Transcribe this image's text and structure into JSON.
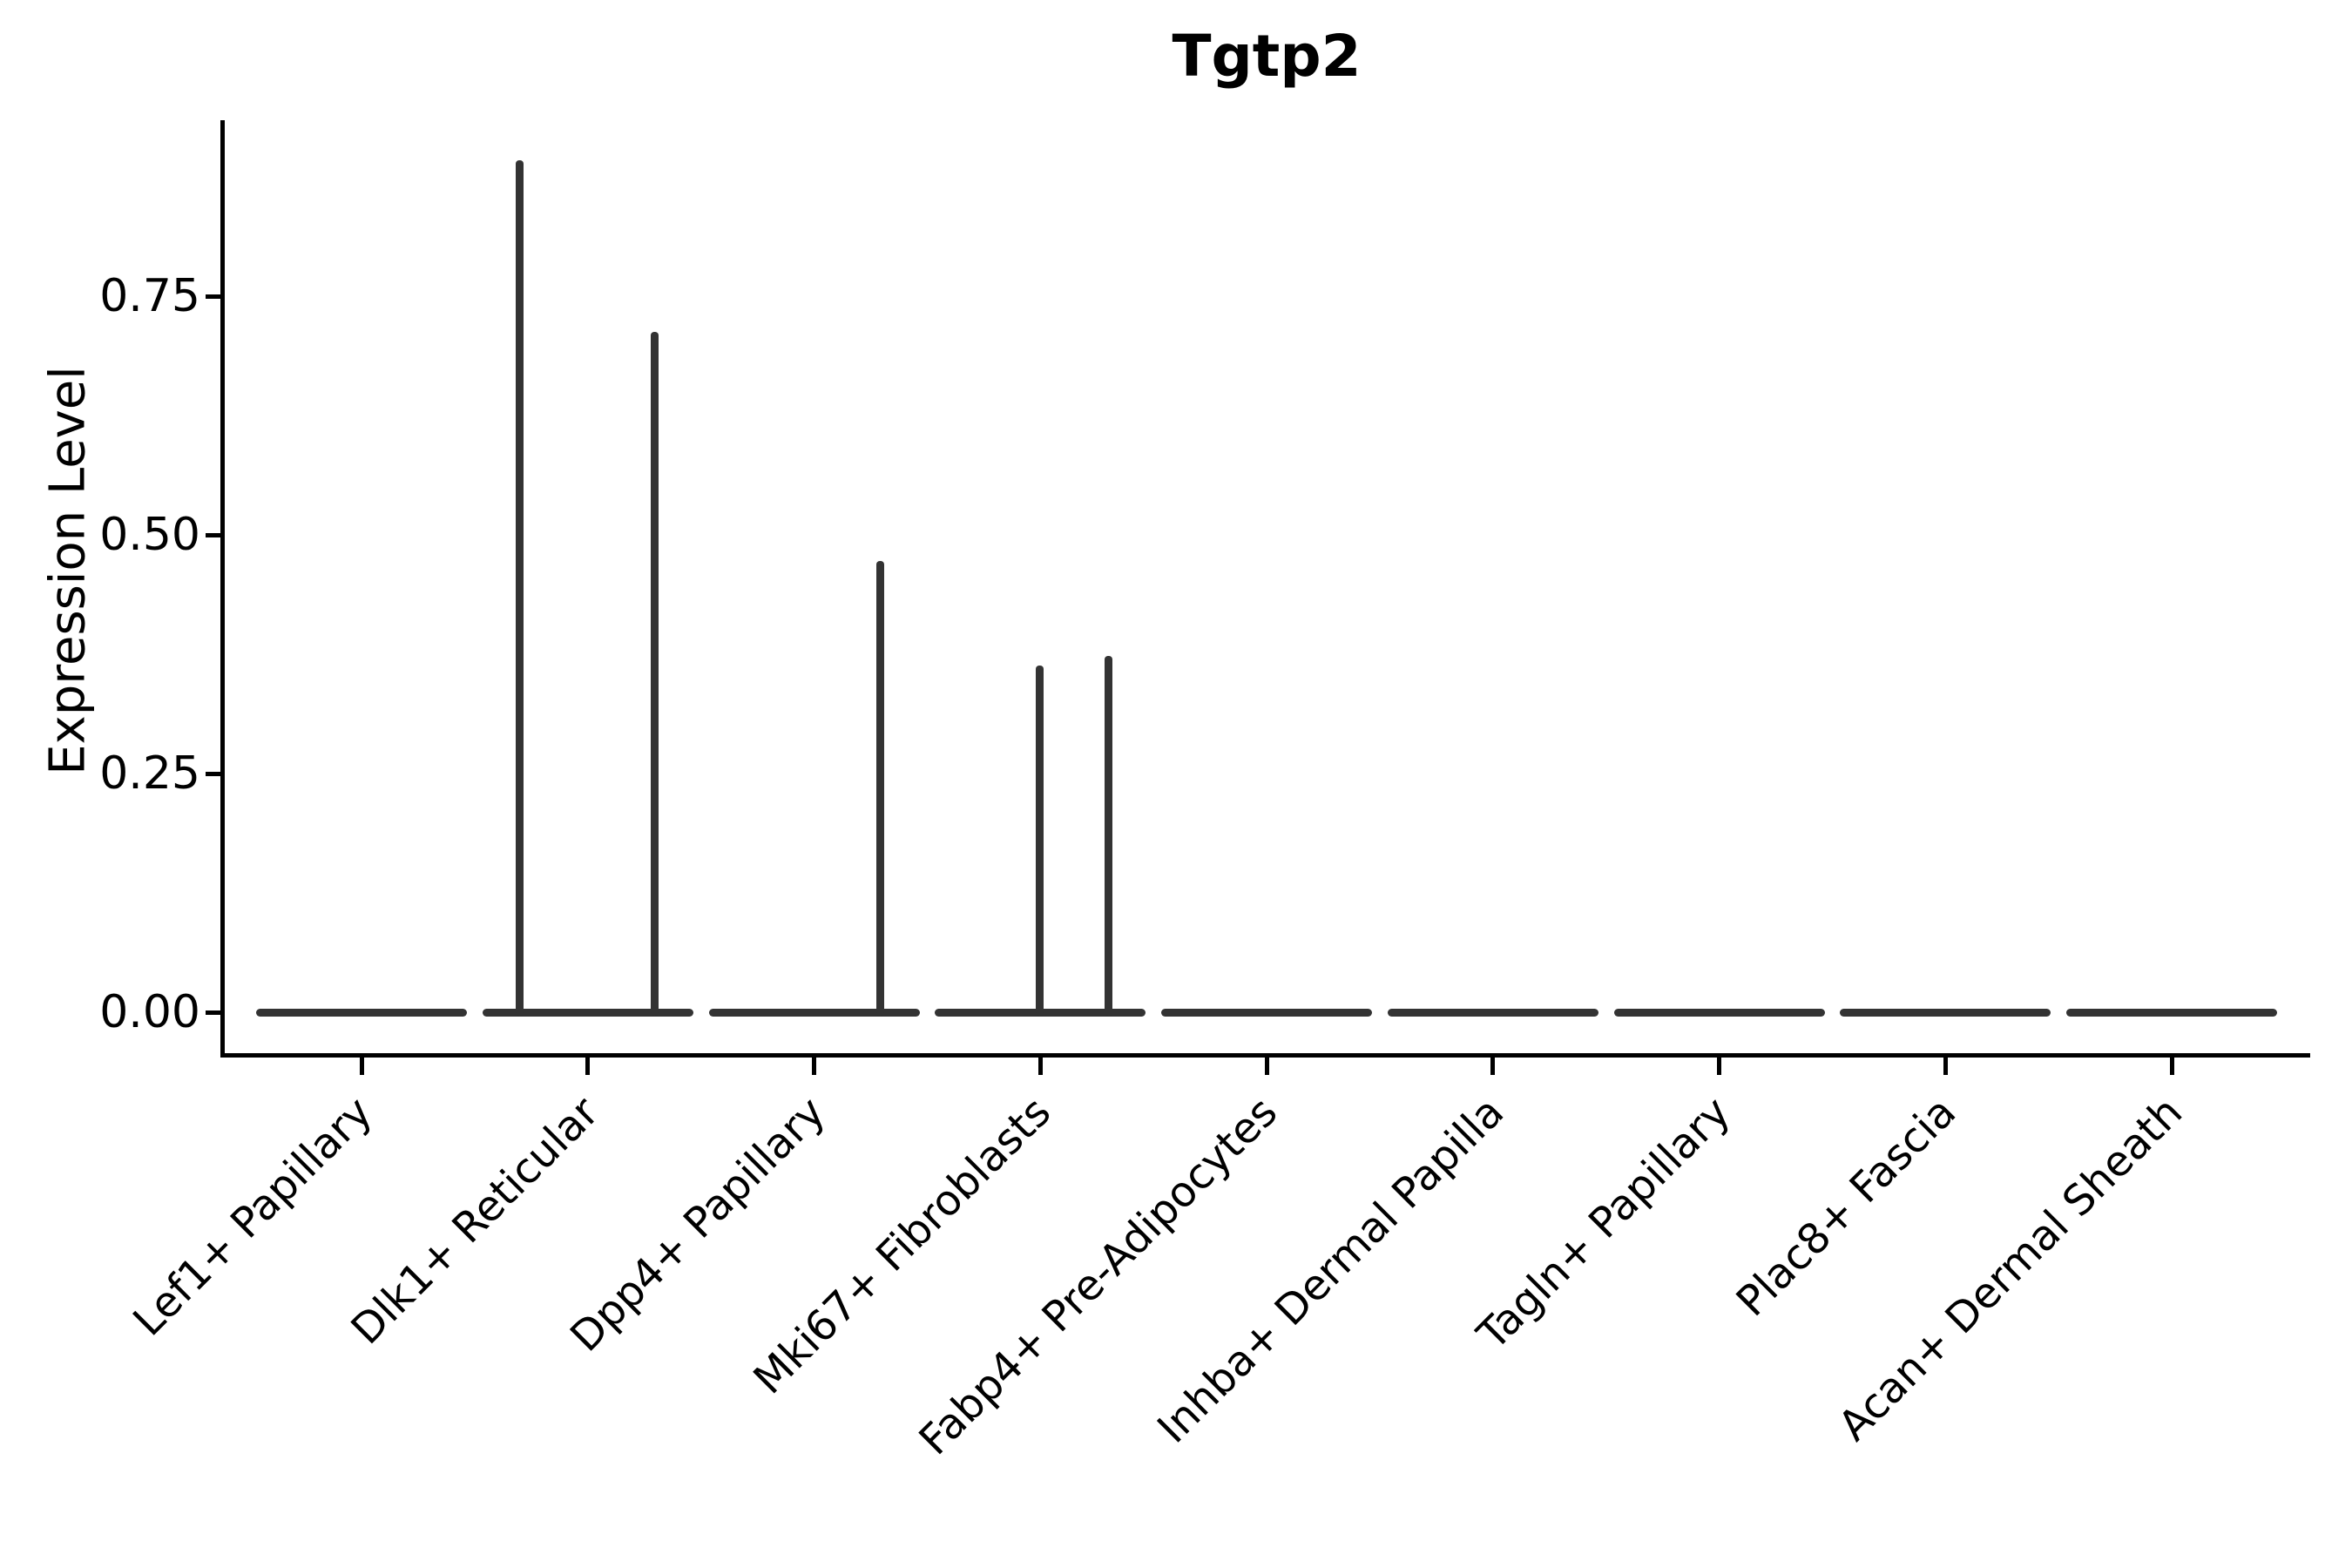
{
  "chart_data": {
    "type": "violin",
    "title": "Tgtp2",
    "ylabel": "Expression Level",
    "xlabel": "",
    "grid": false,
    "legend": "none",
    "yticks_labels": [
      "0.00",
      "0.25",
      "0.50",
      "0.75"
    ],
    "ytick_values": [
      0.0,
      0.25,
      0.5,
      0.75
    ],
    "ylim": [
      -0.04,
      0.93
    ],
    "categories": [
      "Lef1+ Papillary",
      "Dlk1+ Reticular",
      "Dpp4+ Papillary",
      "Mki67+ Fibroblasts",
      "Fabp4+ Pre-Adipocytes",
      "Inhba+ Dermal Papilla",
      "Tagln+ Papillary",
      "Plac8+ Fascia",
      "Acan+ Dermal Sheath"
    ],
    "violins": [
      {
        "category": "Lef1+ Papillary",
        "baseline_value": 0.0,
        "spikes": []
      },
      {
        "category": "Dlk1+ Reticular",
        "baseline_value": 0.0,
        "spikes": [
          {
            "pos": -0.3,
            "max_value": 0.89
          },
          {
            "pos": 0.296,
            "max_value": 0.71
          }
        ]
      },
      {
        "category": "Dpp4+ Papillary",
        "baseline_value": 0.0,
        "spikes": [
          {
            "pos": 0.294,
            "max_value": 0.47
          }
        ]
      },
      {
        "category": "Mki67+ Fibroblasts",
        "baseline_value": 0.0,
        "spikes": [
          {
            "pos": -0.004,
            "max_value": 0.36
          },
          {
            "pos": 0.3,
            "max_value": 0.37
          }
        ]
      },
      {
        "category": "Fabp4+ Pre-Adipocytes",
        "baseline_value": 0.0,
        "spikes": []
      },
      {
        "category": "Inhba+ Dermal Papilla",
        "baseline_value": 0.0,
        "spikes": []
      },
      {
        "category": "Tagln+ Papillary",
        "baseline_value": 0.0,
        "spikes": []
      },
      {
        "category": "Plac8+ Fascia",
        "baseline_value": 0.0,
        "spikes": []
      },
      {
        "category": "Acan+ Dermal Sheath",
        "baseline_value": 0.0,
        "spikes": []
      }
    ],
    "colors": {
      "violin_stroke": "#333333",
      "axis": "#000000",
      "text": "#000000",
      "background": "#ffffff"
    }
  }
}
